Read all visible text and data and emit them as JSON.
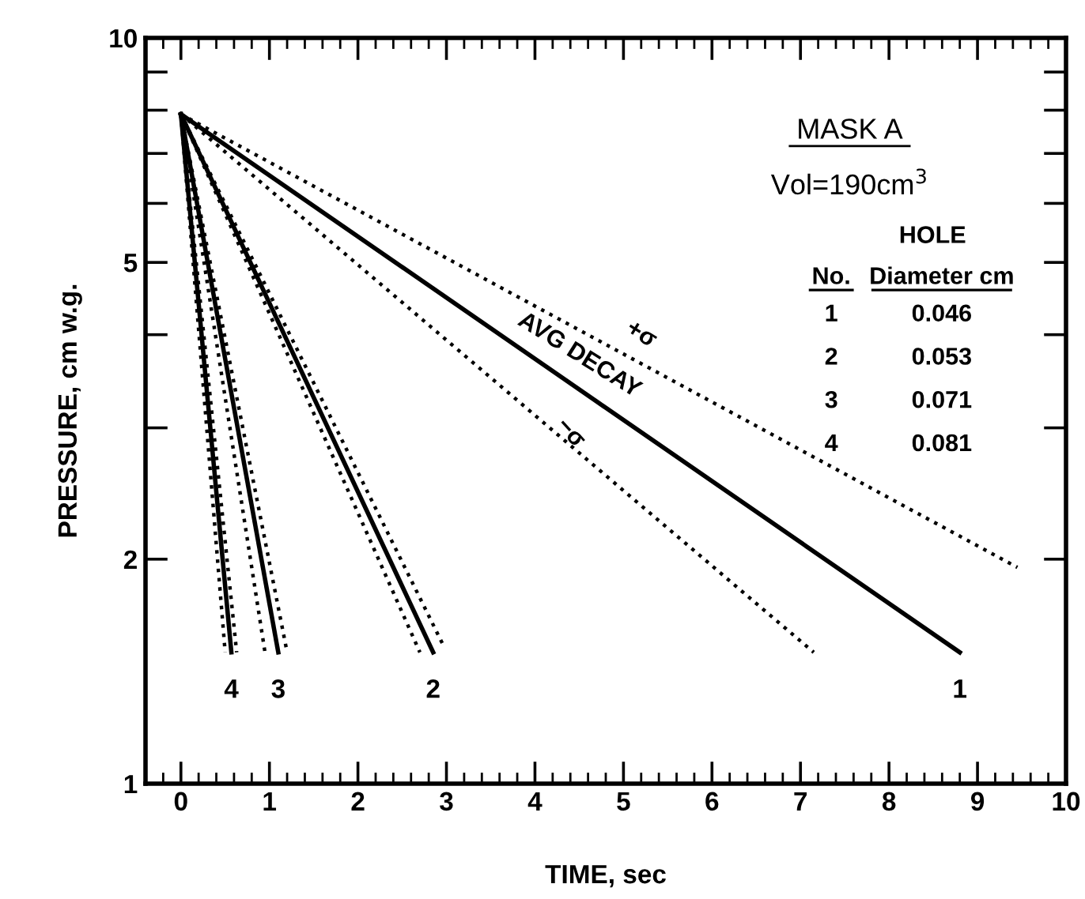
{
  "chart_data": {
    "type": "line",
    "xlabel": "TIME, sec",
    "ylabel": "PRESSURE, cm w.g.",
    "log": "y",
    "grid": false,
    "legend": false,
    "xlim": [
      -0.4,
      10
    ],
    "xticks": [
      0,
      1,
      2,
      3,
      4,
      5,
      6,
      7,
      8,
      9,
      10
    ],
    "ylim": [
      1,
      10
    ],
    "yticks": [
      1,
      2,
      {
        "value": 3,
        "label": null
      },
      {
        "value": 4,
        "label": null
      },
      5,
      {
        "value": 6,
        "label": null
      },
      {
        "value": 7,
        "label": null
      },
      {
        "value": 8,
        "label": null
      },
      {
        "value": 9,
        "label": null
      },
      10
    ],
    "series": [
      {
        "color": "#000000",
        "line_style": "solid",
        "x": [
          0,
          8.8
        ],
        "values": [
          7.9,
          1.5
        ]
      },
      {
        "color": "#000000",
        "line_style": "dotted",
        "x": [
          0,
          9.45
        ],
        "values": [
          7.9,
          1.95
        ]
      },
      {
        "color": "#000000",
        "line_style": "dotted",
        "x": [
          0,
          7.15
        ],
        "values": [
          7.9,
          1.5
        ]
      },
      {
        "color": "#000000",
        "line_style": "solid",
        "x": [
          0,
          2.85
        ],
        "values": [
          7.9,
          1.5
        ]
      },
      {
        "color": "#000000",
        "line_style": "dotted",
        "x": [
          0,
          2.7
        ],
        "values": [
          7.9,
          1.5
        ]
      },
      {
        "color": "#000000",
        "line_style": "dotted",
        "x": [
          0,
          2.98
        ],
        "values": [
          7.9,
          1.52
        ]
      },
      {
        "color": "#000000",
        "line_style": "solid",
        "x": [
          0,
          1.1
        ],
        "values": [
          7.9,
          1.5
        ]
      },
      {
        "color": "#000000",
        "line_style": "dotted",
        "x": [
          0,
          1.2
        ],
        "values": [
          7.9,
          1.5
        ]
      },
      {
        "color": "#000000",
        "line_style": "dotted",
        "x": [
          0,
          0.95
        ],
        "values": [
          7.9,
          1.5
        ]
      },
      {
        "color": "#000000",
        "line_style": "solid",
        "x": [
          0,
          0.57
        ],
        "values": [
          7.9,
          1.5
        ]
      },
      {
        "color": "#000000",
        "line_style": "dotted",
        "x": [
          0,
          0.5
        ],
        "values": [
          7.9,
          1.5
        ]
      },
      {
        "color": "#000000",
        "line_style": "dotted",
        "x": [
          0,
          0.63
        ],
        "values": [
          7.9,
          1.5
        ]
      }
    ],
    "annotations": [
      {
        "text": "1",
        "x": 8.8,
        "y": 1.5
      },
      {
        "text": "2",
        "x": 2.85,
        "y": 1.5
      },
      {
        "text": "3",
        "x": 1.1,
        "y": 1.5
      },
      {
        "text": "4",
        "x": 0.57,
        "y": 1.5
      },
      "AVG DECAY",
      "+σ",
      "−σ",
      "MASK A",
      "Vol=190cm$^{3}$",
      "HOLE",
      "No.",
      "Diameter cm",
      "1",
      "0.046",
      "2",
      "0.053",
      "3",
      "0.071",
      "4",
      "0.081"
    ]
  }
}
